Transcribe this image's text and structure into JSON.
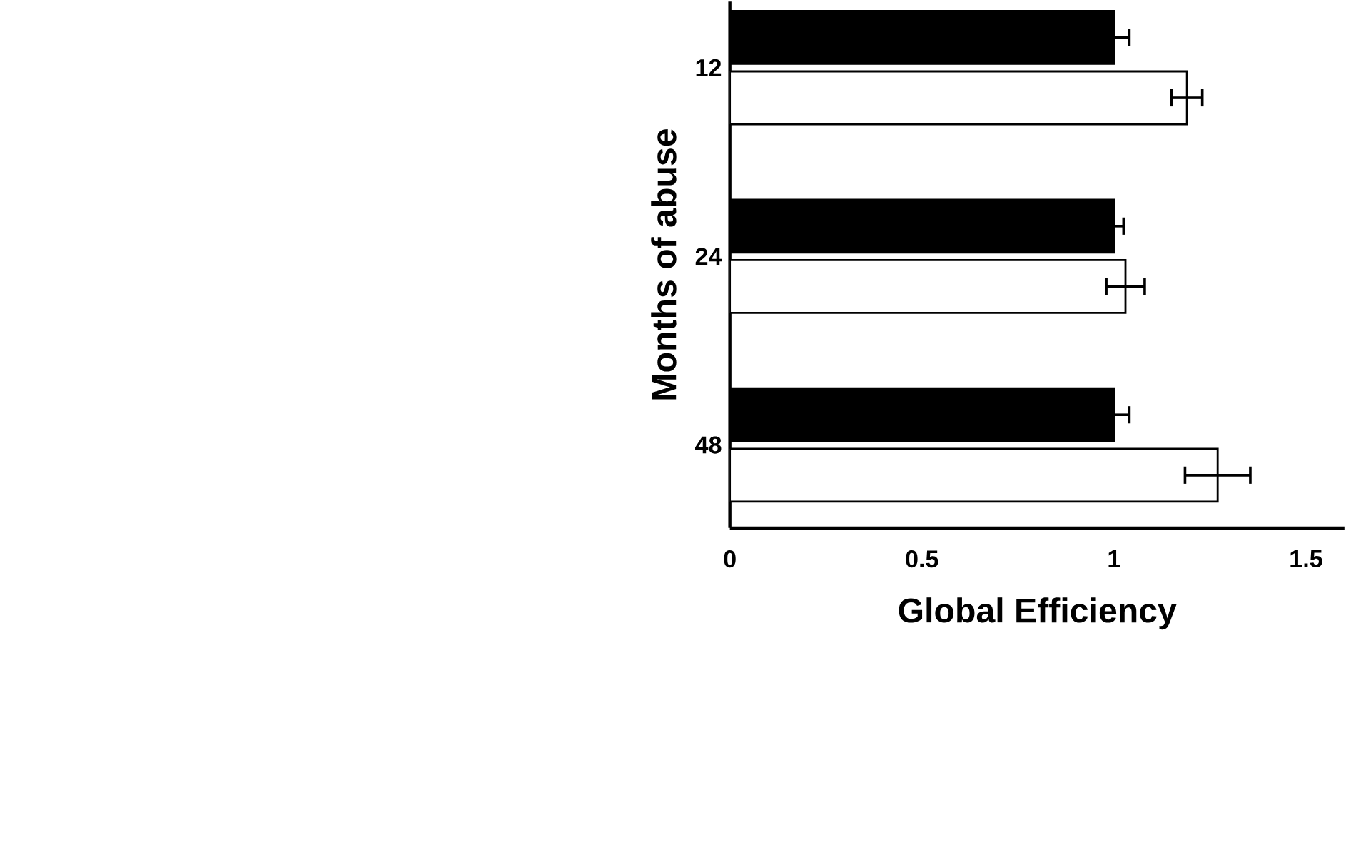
{
  "chart_data": {
    "type": "bar",
    "orientation": "horizontal",
    "xlabel": "Global Efficiency",
    "ylabel": "Months of abuse",
    "categories": [
      "12",
      "24",
      "48"
    ],
    "series": [
      {
        "color": "#000000",
        "values": [
          1.0,
          1.0,
          1.0
        ],
        "errors": [
          0.04,
          0.025,
          0.04
        ]
      },
      {
        "color": "#ffffff",
        "values": [
          1.19,
          1.03,
          1.27
        ],
        "errors": [
          0.04,
          0.05,
          0.085
        ]
      }
    ],
    "xlim": [
      0,
      1.6
    ],
    "xticks": [
      0,
      0.5,
      1,
      1.5
    ]
  }
}
